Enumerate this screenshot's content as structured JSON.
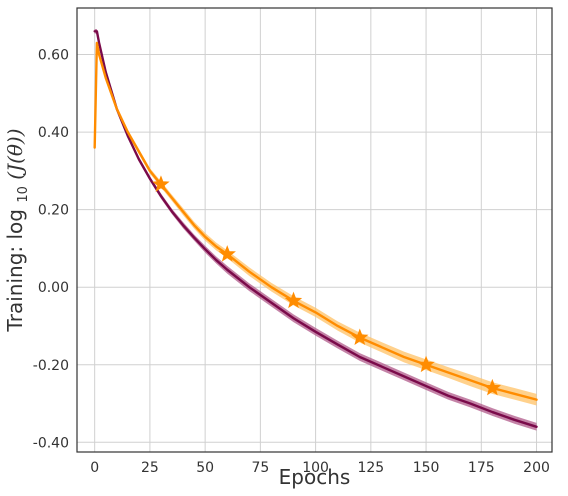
{
  "chart_data": {
    "type": "line",
    "xlabel": "Epochs",
    "ylabel": {
      "prefix": "Training: ",
      "math": "log",
      "sub": "10",
      "arg": "(J(θ))"
    },
    "xlim": [
      -8,
      207
    ],
    "ylim": [
      -0.425,
      0.72
    ],
    "x_ticks": [
      0,
      25,
      50,
      75,
      100,
      125,
      150,
      175,
      200
    ],
    "x_tick_labels": [
      "0",
      "25",
      "50",
      "75",
      "100",
      "125",
      "150",
      "175",
      "200"
    ],
    "y_ticks": [
      0.6,
      0.4,
      0.2,
      0.0,
      -0.2,
      -0.4
    ],
    "y_tick_labels": [
      "0.60",
      "0.40",
      "0.20",
      "0.00",
      "-0.20",
      "-0.40"
    ],
    "grid": true,
    "series": [
      {
        "color": "#7a0a4a",
        "band_color": "#b05a8a",
        "x": [
          0,
          1,
          2,
          5,
          10,
          15,
          20,
          25,
          30,
          35,
          40,
          45,
          50,
          55,
          60,
          70,
          80,
          90,
          100,
          110,
          120,
          130,
          140,
          150,
          160,
          170,
          180,
          190,
          200
        ],
        "y": [
          0.66,
          0.66,
          0.63,
          0.555,
          0.46,
          0.39,
          0.33,
          0.28,
          0.235,
          0.195,
          0.16,
          0.128,
          0.098,
          0.07,
          0.045,
          0.0,
          -0.04,
          -0.08,
          -0.115,
          -0.148,
          -0.18,
          -0.205,
          -0.23,
          -0.255,
          -0.28,
          -0.3,
          -0.322,
          -0.342,
          -0.36
        ],
        "band": [
          0.006,
          0.006,
          0.006,
          0.006,
          0.006,
          0.006,
          0.006,
          0.006,
          0.007,
          0.007,
          0.008,
          0.008,
          0.009,
          0.009,
          0.01,
          0.01,
          0.01,
          0.01,
          0.01,
          0.01,
          0.01,
          0.01,
          0.01,
          0.01,
          0.01,
          0.01,
          0.01,
          0.01,
          0.01
        ]
      },
      {
        "color": "#ff8c00",
        "band_color": "#ffc266",
        "marker": "star",
        "x": [
          0,
          1,
          2,
          5,
          10,
          15,
          20,
          25,
          30,
          35,
          40,
          45,
          50,
          55,
          60,
          70,
          80,
          90,
          100,
          110,
          120,
          130,
          140,
          150,
          160,
          170,
          180,
          190,
          200
        ],
        "y": [
          0.36,
          0.63,
          0.6,
          0.54,
          0.46,
          0.4,
          0.35,
          0.3,
          0.265,
          0.23,
          0.195,
          0.16,
          0.13,
          0.105,
          0.085,
          0.04,
          0.0,
          -0.035,
          -0.065,
          -0.1,
          -0.13,
          -0.155,
          -0.18,
          -0.2,
          -0.22,
          -0.24,
          -0.26,
          -0.275,
          -0.29
        ],
        "band": [
          0.006,
          0.006,
          0.006,
          0.006,
          0.006,
          0.006,
          0.007,
          0.007,
          0.008,
          0.008,
          0.009,
          0.009,
          0.01,
          0.01,
          0.01,
          0.011,
          0.011,
          0.012,
          0.012,
          0.012,
          0.013,
          0.013,
          0.014,
          0.014,
          0.014,
          0.015,
          0.015,
          0.015,
          0.015
        ],
        "marker_x": [
          30,
          60,
          90,
          120,
          150,
          180
        ],
        "marker_y": [
          0.265,
          0.085,
          -0.035,
          -0.13,
          -0.2,
          -0.26
        ]
      }
    ]
  }
}
